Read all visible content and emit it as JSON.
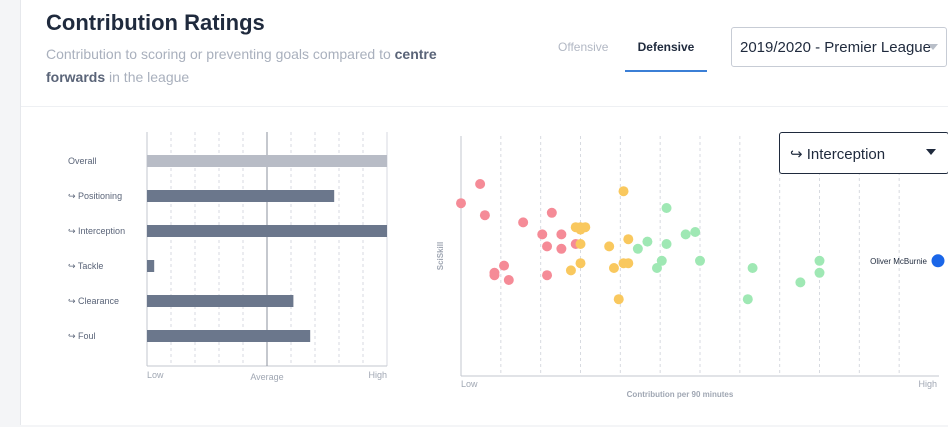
{
  "header": {
    "title": "Contribution Ratings",
    "subtitle_pre": "Contribution to scoring or preventing goals compared to",
    "subtitle_bold": "centre forwards",
    "subtitle_post": "in the league"
  },
  "tabs": [
    {
      "label": "Offensive",
      "active": false
    },
    {
      "label": "Defensive",
      "active": true
    }
  ],
  "season_select": {
    "value": "2019/2020 - Premier League"
  },
  "scatter_select": {
    "value": "↪ Interception"
  },
  "colors": {
    "rating_bar": "#6b778c",
    "overall_bar": "#b8bcc6",
    "red": "#f58b97",
    "orange": "#f9c85e",
    "green": "#9fe8b4",
    "highlight": "#1a66e8",
    "accent": "#3b7fd6"
  },
  "chart_data": [
    {
      "type": "bar",
      "orientation": "horizontal",
      "categories": [
        "Overall",
        "↪ Positioning",
        "↪ Interception",
        "↪ Tackle",
        "↪ Clearance",
        "↪ Foul"
      ],
      "values": [
        1.0,
        0.78,
        1.0,
        0.03,
        0.61,
        0.68
      ],
      "scale_labels": [
        "Low",
        "Average",
        "High"
      ],
      "xlim": [
        0,
        1
      ],
      "average_line": 0.5,
      "grid": true
    },
    {
      "type": "scatter",
      "xlabel": "Contribution per 90 minutes",
      "ylabel": "SciSkill",
      "x_tick_labels": [
        "Low",
        "High"
      ],
      "xlim": [
        0,
        1
      ],
      "ylim": [
        0,
        1
      ],
      "highlight": {
        "label": "Oliver McBurnie",
        "x": 1.0,
        "y": 0.48
      },
      "series": [
        {
          "group": "red",
          "points": [
            [
              0.0,
              0.72
            ],
            [
              0.04,
              0.8
            ],
            [
              0.05,
              0.67
            ],
            [
              0.07,
              0.42
            ],
            [
              0.07,
              0.43
            ],
            [
              0.09,
              0.46
            ],
            [
              0.1,
              0.4
            ],
            [
              0.13,
              0.64
            ],
            [
              0.17,
              0.59
            ],
            [
              0.18,
              0.54
            ],
            [
              0.18,
              0.42
            ],
            [
              0.19,
              0.68
            ],
            [
              0.21,
              0.59
            ],
            [
              0.21,
              0.53
            ],
            [
              0.24,
              0.55
            ]
          ]
        },
        {
          "group": "orange",
          "points": [
            [
              0.23,
              0.44
            ],
            [
              0.25,
              0.62
            ],
            [
              0.25,
              0.61
            ],
            [
              0.24,
              0.62
            ],
            [
              0.26,
              0.62
            ],
            [
              0.25,
              0.55
            ],
            [
              0.25,
              0.47
            ],
            [
              0.31,
              0.54
            ],
            [
              0.32,
              0.45
            ],
            [
              0.33,
              0.32
            ],
            [
              0.34,
              0.47
            ],
            [
              0.35,
              0.47
            ],
            [
              0.35,
              0.57
            ],
            [
              0.34,
              0.77
            ]
          ]
        },
        {
          "group": "green",
          "points": [
            [
              0.37,
              0.53
            ],
            [
              0.39,
              0.56
            ],
            [
              0.41,
              0.45
            ],
            [
              0.42,
              0.48
            ],
            [
              0.43,
              0.55
            ],
            [
              0.43,
              0.7
            ],
            [
              0.47,
              0.59
            ],
            [
              0.49,
              0.6
            ],
            [
              0.5,
              0.48
            ],
            [
              0.6,
              0.32
            ],
            [
              0.61,
              0.45
            ],
            [
              0.71,
              0.39
            ],
            [
              0.75,
              0.48
            ],
            [
              0.75,
              0.43
            ]
          ]
        }
      ]
    }
  ]
}
